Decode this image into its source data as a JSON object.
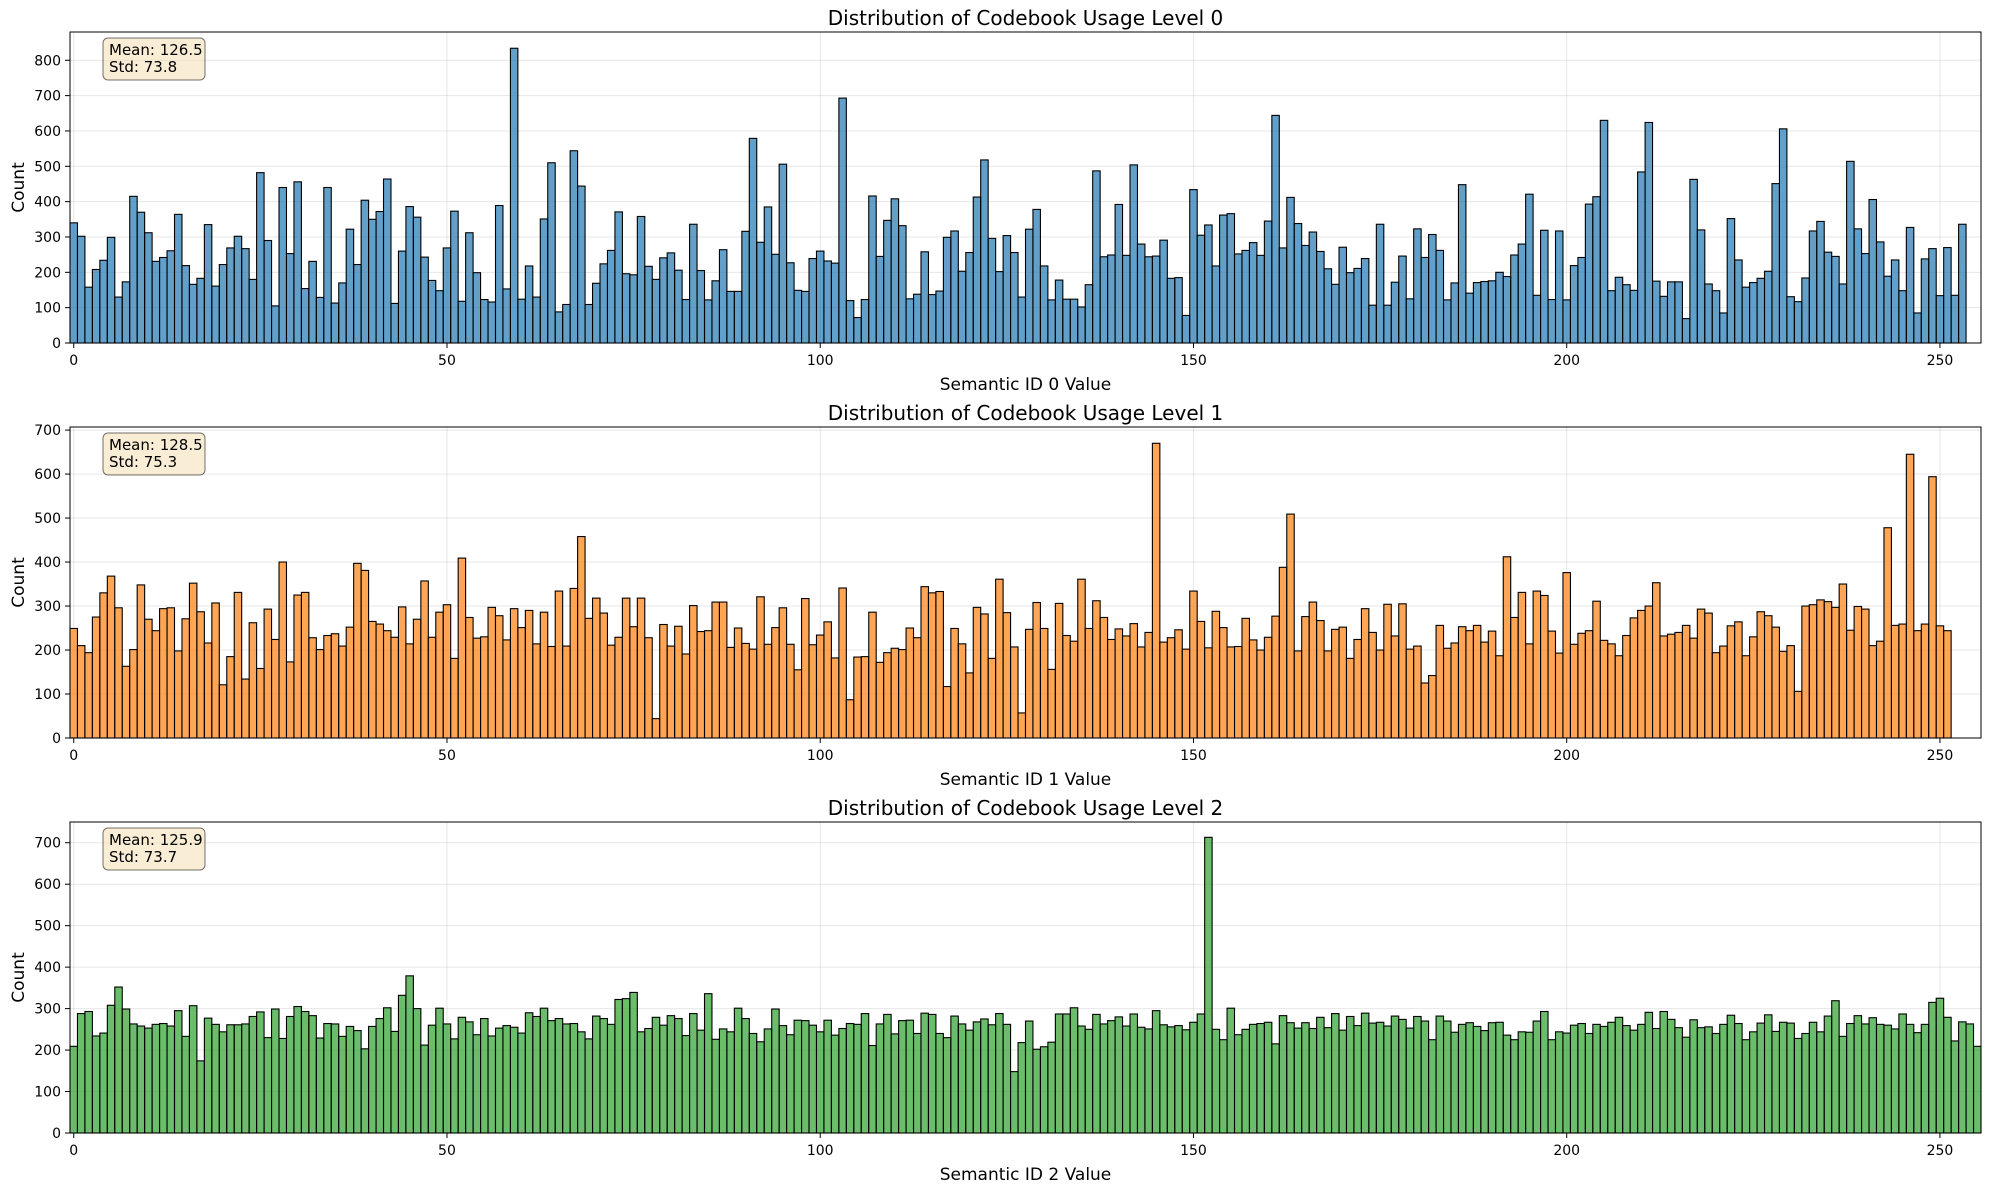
{
  "chart_data": [
    {
      "type": "bar",
      "title": "Distribution of Codebook Usage Level 0",
      "xlabel": "Semantic ID 0 Value",
      "ylabel": "Count",
      "xlim": [
        0,
        255
      ],
      "ylim": [
        0,
        880
      ],
      "xticks": [
        0,
        50,
        100,
        150,
        200,
        250
      ],
      "yticks": [
        0,
        100,
        200,
        300,
        400,
        500,
        600,
        700,
        800
      ],
      "grid": true,
      "color": "#1f77b4",
      "stats_box": {
        "mean": "Mean: 126.5",
        "std": "Std: 73.8"
      },
      "x_start": 0,
      "values": [
        340,
        302,
        158,
        208,
        234,
        299,
        130,
        173,
        415,
        370,
        312,
        231,
        242,
        261,
        364,
        219,
        166,
        183,
        335,
        161,
        222,
        269,
        302,
        267,
        180,
        482,
        290,
        105,
        440,
        253,
        456,
        154,
        231,
        129,
        440,
        113,
        170,
        322,
        222,
        404,
        350,
        372,
        464,
        112,
        260,
        386,
        356,
        243,
        177,
        148,
        269,
        373,
        118,
        312,
        199,
        123,
        116,
        389,
        153,
        834,
        124,
        218,
        130,
        351,
        510,
        88,
        109,
        544,
        444,
        109,
        169,
        224,
        262,
        371,
        196,
        193,
        358,
        217,
        180,
        241,
        255,
        206,
        123,
        336,
        205,
        122,
        176,
        264,
        146,
        146,
        316,
        579,
        285,
        385,
        251,
        506,
        227,
        149,
        146,
        239,
        260,
        232,
        226,
        693,
        120,
        72,
        123,
        416,
        245,
        347,
        408,
        332,
        125,
        138,
        258,
        137,
        147,
        299,
        317,
        203,
        256,
        413,
        518,
        296,
        202,
        304,
        256,
        130,
        322,
        378,
        218,
        122,
        178,
        124,
        124,
        102,
        165,
        487,
        244,
        249,
        392,
        248,
        504,
        280,
        244,
        246,
        291,
        183,
        185,
        78,
        434,
        305,
        334,
        218,
        362,
        366,
        252,
        262,
        284,
        248,
        345,
        644,
        269,
        412,
        338,
        276,
        314,
        259,
        210,
        166,
        271,
        199,
        211,
        239,
        107,
        336,
        107,
        172,
        246,
        125,
        323,
        242,
        307,
        262,
        122,
        170,
        448,
        141,
        171,
        174,
        176,
        200,
        188,
        249,
        280,
        421,
        135,
        319,
        123,
        317,
        122,
        219,
        242,
        393,
        414,
        630,
        148,
        186,
        165,
        149,
        484,
        624,
        175,
        132,
        173,
        173,
        69,
        463,
        320,
        167,
        148,
        85,
        352,
        235,
        158,
        171,
        183,
        203,
        451,
        606,
        131,
        117,
        184,
        317,
        344,
        257,
        245,
        167,
        514,
        323,
        253,
        406,
        286,
        189,
        235,
        148,
        327,
        85,
        238,
        267,
        134,
        270,
        135,
        336
      ]
    },
    {
      "type": "bar",
      "title": "Distribution of Codebook Usage Level 1",
      "xlabel": "Semantic ID 1 Value",
      "ylabel": "Count",
      "xlim": [
        0,
        255
      ],
      "ylim": [
        0,
        707
      ],
      "xticks": [
        0,
        50,
        100,
        150,
        200,
        250
      ],
      "yticks": [
        0,
        100,
        200,
        300,
        400,
        500,
        600,
        700
      ],
      "grid": true,
      "color": "#ff7f0e",
      "stats_box": {
        "mean": "Mean: 128.5",
        "std": "Std: 75.3"
      },
      "x_start": 0,
      "values": [
        249,
        210,
        194,
        275,
        330,
        368,
        296,
        163,
        201,
        348,
        270,
        244,
        294,
        296,
        198,
        271,
        352,
        287,
        216,
        307,
        121,
        185,
        331,
        134,
        262,
        158,
        293,
        224,
        400,
        173,
        325,
        331,
        228,
        201,
        233,
        237,
        209,
        252,
        397,
        381,
        265,
        259,
        244,
        229,
        298,
        214,
        270,
        357,
        229,
        286,
        303,
        181,
        409,
        274,
        227,
        230,
        297,
        278,
        223,
        294,
        251,
        290,
        214,
        286,
        208,
        334,
        209,
        340,
        458,
        272,
        318,
        284,
        211,
        229,
        318,
        253,
        318,
        228,
        44,
        258,
        209,
        254,
        191,
        301,
        242,
        244,
        309,
        309,
        206,
        250,
        215,
        202,
        321,
        213,
        251,
        296,
        213,
        155,
        317,
        212,
        234,
        264,
        182,
        341,
        87,
        184,
        185,
        286,
        172,
        194,
        204,
        201,
        250,
        228,
        344,
        330,
        333,
        117,
        249,
        214,
        148,
        297,
        282,
        181,
        361,
        285,
        207,
        57,
        247,
        308,
        249,
        156,
        306,
        233,
        220,
        361,
        249,
        312,
        274,
        224,
        248,
        232,
        260,
        207,
        240,
        670,
        218,
        228,
        246,
        202,
        334,
        265,
        205,
        288,
        251,
        207,
        208,
        272,
        223,
        200,
        229,
        277,
        388,
        509,
        198,
        276,
        309,
        267,
        198,
        247,
        252,
        181,
        224,
        294,
        240,
        200,
        304,
        232,
        305,
        202,
        209,
        125,
        142,
        256,
        204,
        216,
        253,
        244,
        256,
        218,
        243,
        187,
        412,
        274,
        331,
        214,
        334,
        324,
        243,
        193,
        376,
        213,
        238,
        244,
        311,
        222,
        214,
        187,
        233,
        273,
        290,
        300,
        353,
        232,
        236,
        240,
        256,
        227,
        293,
        284,
        194,
        209,
        255,
        264,
        187,
        230,
        287,
        278,
        252,
        197,
        210,
        106,
        300,
        303,
        314,
        310,
        297,
        350,
        245,
        299,
        293,
        210,
        220,
        478,
        256,
        259,
        645,
        244,
        259,
        594,
        255,
        244
      ]
    },
    {
      "type": "bar",
      "title": "Distribution of Codebook Usage Level 2",
      "xlabel": "Semantic ID 2 Value",
      "ylabel": "Count",
      "xlim": [
        0,
        255
      ],
      "ylim": [
        0,
        750
      ],
      "xticks": [
        0,
        50,
        100,
        150,
        200,
        250
      ],
      "yticks": [
        0,
        100,
        200,
        300,
        400,
        500,
        600,
        700
      ],
      "grid": true,
      "color": "#2ca02c",
      "stats_box": {
        "mean": "Mean: 125.9",
        "std": "Std: 73.7"
      },
      "x_start": 0,
      "values": [
        209,
        288,
        293,
        234,
        241,
        308,
        352,
        299,
        263,
        258,
        253,
        262,
        264,
        258,
        295,
        233,
        307,
        174,
        277,
        262,
        244,
        261,
        261,
        263,
        281,
        292,
        230,
        299,
        228,
        281,
        305,
        293,
        283,
        229,
        264,
        263,
        233,
        257,
        247,
        203,
        257,
        276,
        302,
        245,
        332,
        379,
        300,
        212,
        260,
        301,
        263,
        227,
        279,
        268,
        237,
        276,
        234,
        253,
        259,
        255,
        241,
        290,
        281,
        301,
        271,
        276,
        263,
        264,
        244,
        227,
        282,
        276,
        262,
        322,
        324,
        339,
        244,
        252,
        279,
        260,
        283,
        276,
        235,
        288,
        248,
        336,
        226,
        251,
        244,
        301,
        276,
        240,
        220,
        251,
        299,
        259,
        237,
        272,
        271,
        260,
        244,
        272,
        236,
        252,
        264,
        262,
        288,
        211,
        263,
        286,
        239,
        271,
        272,
        240,
        289,
        286,
        240,
        230,
        282,
        263,
        248,
        268,
        275,
        261,
        288,
        262,
        148,
        218,
        270,
        202,
        208,
        219,
        287,
        287,
        302,
        258,
        250,
        286,
        263,
        271,
        280,
        258,
        287,
        255,
        251,
        295,
        261,
        256,
        259,
        249,
        267,
        287,
        713,
        250,
        225,
        301,
        237,
        250,
        262,
        264,
        267,
        215,
        283,
        266,
        253,
        266,
        252,
        279,
        254,
        288,
        248,
        281,
        259,
        289,
        265,
        267,
        258,
        282,
        274,
        253,
        281,
        270,
        225,
        282,
        270,
        243,
        262,
        266,
        257,
        247,
        266,
        267,
        236,
        225,
        244,
        243,
        270,
        293,
        225,
        244,
        241,
        260,
        264,
        240,
        262,
        257,
        267,
        279,
        259,
        248,
        262,
        291,
        252,
        293,
        274,
        254,
        231,
        273,
        254,
        256,
        240,
        262,
        284,
        264,
        225,
        244,
        265,
        285,
        245,
        267,
        265,
        228,
        240,
        267,
        244,
        282,
        319,
        233,
        264,
        283,
        263,
        278,
        262,
        260,
        251,
        287,
        262,
        242,
        262,
        315,
        325,
        279,
        222,
        268,
        263,
        209
      ]
    }
  ]
}
